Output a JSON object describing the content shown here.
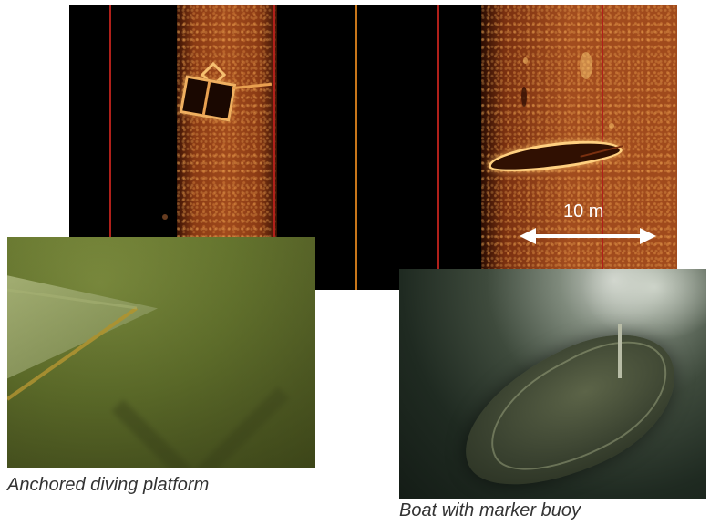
{
  "sonar": {
    "scale_label": "10 m",
    "colors": {
      "swath": "#a04a1c",
      "trackline": "#b0201a",
      "center_line": "#c8761a",
      "echo": "#ffd080"
    }
  },
  "captions": {
    "platform": "Anchored diving platform",
    "boat": "Boat with marker buoy"
  },
  "icons": [
    "double-arrow-icon"
  ]
}
